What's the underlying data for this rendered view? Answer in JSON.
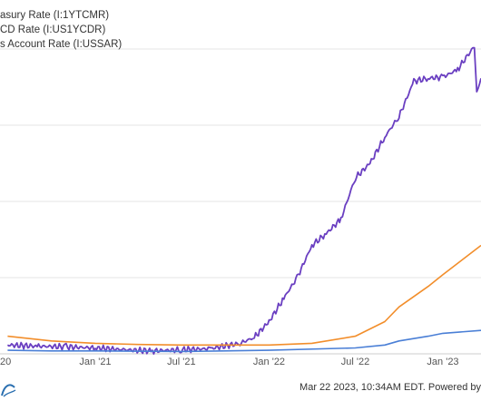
{
  "chart_data": {
    "type": "line",
    "x_tick_labels": [
      "20",
      "Jan '21",
      "Jul '21",
      "Jan '22",
      "Jul '22",
      "Jan '23"
    ],
    "ylim": [
      0,
      5.2
    ],
    "grid": "horizontal",
    "legend_placement": "top-left",
    "series": [
      {
        "name": "asury Rate (I:1YTCMR)",
        "color": "#6a3fc1",
        "x": [
          "2020-07",
          "2020-09",
          "2020-11",
          "2021-01",
          "2021-03",
          "2021-05",
          "2021-07",
          "2021-09",
          "2021-11",
          "2021-12",
          "2022-01",
          "2022-02",
          "2022-03",
          "2022-04",
          "2022-05",
          "2022-06",
          "2022-07",
          "2022-08",
          "2022-09",
          "2022-10",
          "2022-11",
          "2022-12",
          "2023-01",
          "2023-02",
          "2023-03-08",
          "2023-03-13",
          "2023-03-22"
        ],
        "y": [
          0.15,
          0.13,
          0.12,
          0.1,
          0.07,
          0.05,
          0.07,
          0.09,
          0.18,
          0.28,
          0.55,
          0.95,
          1.3,
          1.85,
          2.05,
          2.3,
          3.0,
          3.25,
          3.7,
          4.05,
          4.65,
          4.7,
          4.72,
          4.85,
          5.25,
          4.45,
          4.7
        ]
      },
      {
        "name": "CD Rate (I:US1YCDR)",
        "color": "#f28e2b",
        "x": [
          "2020-07",
          "2020-10",
          "2021-01",
          "2021-04",
          "2021-07",
          "2021-10",
          "2022-01",
          "2022-04",
          "2022-07",
          "2022-09",
          "2022-10",
          "2022-12",
          "2023-01",
          "2023-03-22"
        ],
        "y": [
          0.3,
          0.22,
          0.18,
          0.16,
          0.15,
          0.15,
          0.15,
          0.18,
          0.3,
          0.55,
          0.8,
          1.15,
          1.35,
          1.85
        ]
      },
      {
        "name": "s Account Rate (I:USSAR)",
        "color": "#4a7fd6",
        "x": [
          "2020-07",
          "2020-10",
          "2021-01",
          "2021-07",
          "2022-01",
          "2022-07",
          "2022-09",
          "2022-10",
          "2022-12",
          "2023-01",
          "2023-03-22"
        ],
        "y": [
          0.06,
          0.05,
          0.05,
          0.04,
          0.06,
          0.1,
          0.15,
          0.22,
          0.3,
          0.35,
          0.4
        ]
      }
    ]
  },
  "footer": {
    "text": "Mar 22 2023, 10:34AM EDT. Powered by"
  }
}
